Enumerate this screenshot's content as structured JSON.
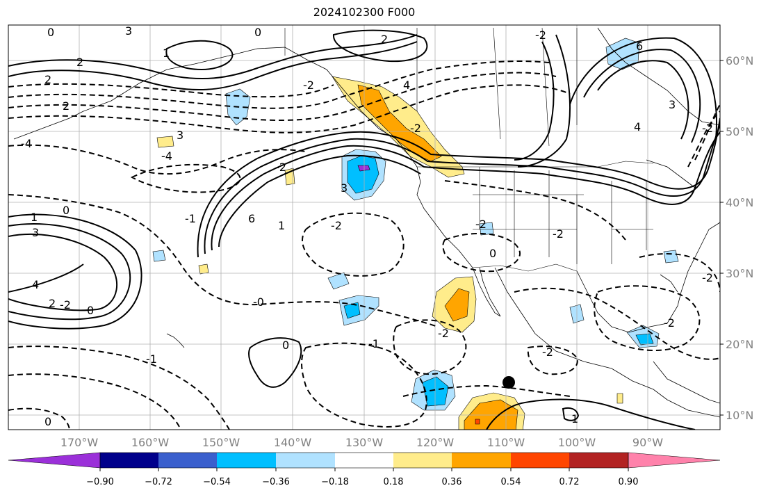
{
  "title": "2024102300 F000",
  "lat_labels": [
    "60°N",
    "50°N",
    "40°N",
    "30°N",
    "20°N",
    "10°N"
  ],
  "lon_labels": [
    "170°W",
    "160°W",
    "150°W",
    "140°W",
    "130°W",
    "120°W",
    "110°W",
    "100°W",
    "90°W"
  ],
  "colorbar": {
    "ticks": [
      "−0.90",
      "−0.72",
      "−0.54",
      "−0.36",
      "−0.18",
      "0.18",
      "0.36",
      "0.54",
      "0.72",
      "0.90"
    ],
    "colors": [
      "#9b30d9",
      "#00008b",
      "#3a5fcd",
      "#00bfff",
      "#b0e2ff",
      "#ffffff",
      "#ffec8b",
      "#ffa500",
      "#ff4500",
      "#b22222",
      "#ff82ab"
    ]
  },
  "contour_labels": [
    "2",
    "3",
    "0",
    "2",
    "6",
    "-2",
    "0",
    "-2",
    "2",
    "2",
    "4",
    "3",
    "-4",
    "3",
    "-4",
    "0",
    "1",
    "3",
    "2",
    "4",
    "1",
    "4",
    "-2",
    "6",
    "0",
    "-1",
    "-2",
    "3",
    "-2",
    "-2",
    "-2",
    "0",
    "-0",
    "0",
    "-2",
    "-2",
    "-1",
    "-2",
    "-2",
    "-1",
    "-2",
    "-2",
    "1",
    "1",
    "0"
  ]
}
